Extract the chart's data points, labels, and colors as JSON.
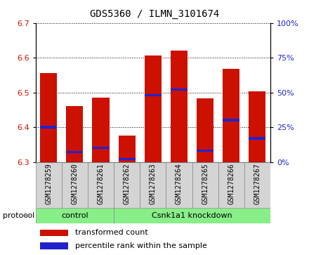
{
  "title": "GDS5360 / ILMN_3101674",
  "samples": [
    "GSM1278259",
    "GSM1278260",
    "GSM1278261",
    "GSM1278262",
    "GSM1278263",
    "GSM1278264",
    "GSM1278265",
    "GSM1278266",
    "GSM1278267"
  ],
  "transformed_count": [
    6.555,
    6.46,
    6.485,
    6.375,
    6.607,
    6.62,
    6.482,
    6.568,
    6.503
  ],
  "percentile_rank": [
    25,
    7,
    10,
    2,
    48,
    52,
    8,
    30,
    17
  ],
  "bar_bottom": 6.3,
  "ylim_left": [
    6.3,
    6.7
  ],
  "ylim_right": [
    0,
    100
  ],
  "yticks_left": [
    6.3,
    6.4,
    6.5,
    6.6,
    6.7
  ],
  "yticks_right": [
    0,
    25,
    50,
    75,
    100
  ],
  "bar_color": "#cc1100",
  "percentile_color": "#2222cc",
  "control_count": 3,
  "control_label": "control",
  "knockdown_label": "Csnk1a1 knockdown",
  "protocol_label": "protocol",
  "legend_red": "transformed count",
  "legend_blue": "percentile rank within the sample",
  "group_color": "#88ee88",
  "xtick_bg_color": "#d4d4d4",
  "tick_label_color_left": "#cc1100",
  "tick_label_color_right": "#2222cc",
  "bar_width": 0.65,
  "title_fontsize": 10,
  "tick_fontsize": 8,
  "label_fontsize": 8,
  "legend_fontsize": 8
}
